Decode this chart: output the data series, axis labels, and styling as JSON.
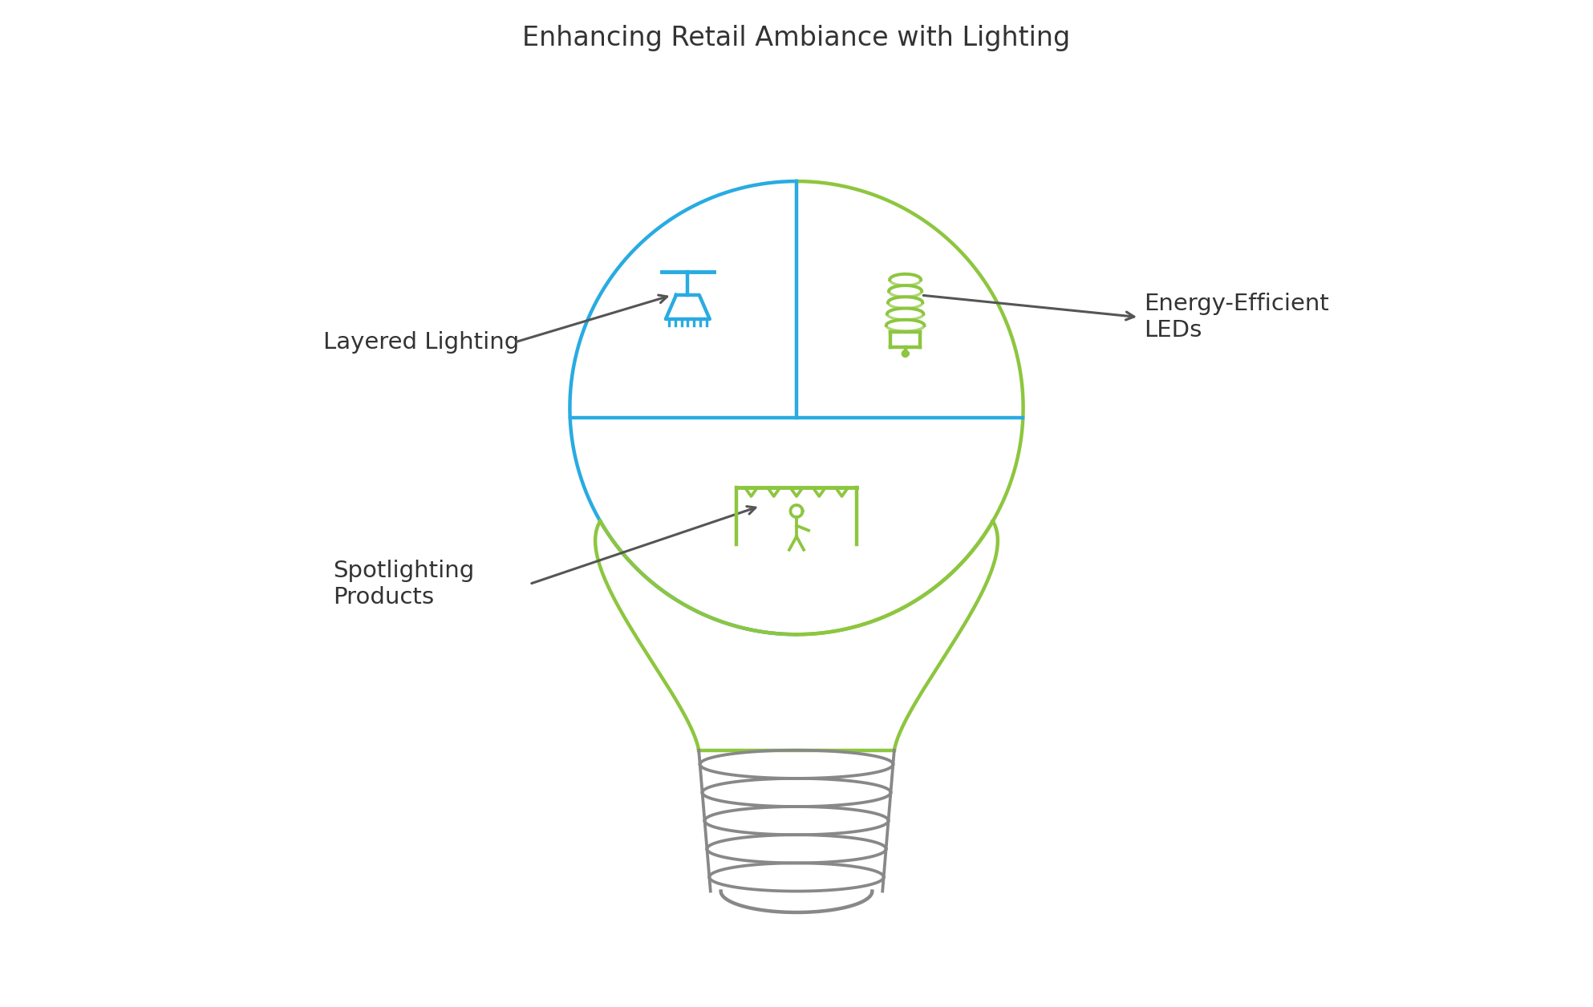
{
  "title": "Enhancing Retail Ambiance with Lighting",
  "title_fontsize": 24,
  "title_color": "#333333",
  "background_color": "#ffffff",
  "blue_color": "#29ABE2",
  "green_color": "#8DC63F",
  "gray_color": "#888888",
  "arrow_color": "#555555",
  "labels": {
    "layered_lighting": "Layered Lighting",
    "energy_efficient": "Energy-Efficient\nLEDs",
    "spotlighting": "Spotlighting\nProducts"
  },
  "label_fontsize": 21
}
